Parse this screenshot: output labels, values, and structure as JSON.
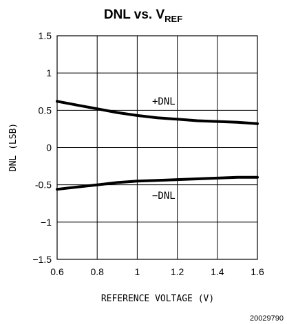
{
  "chart_data": {
    "type": "line",
    "title": "DNL vs. V",
    "title_subscript": "REF",
    "xlabel": "REFERENCE VOLTAGE (V)",
    "ylabel": "DNL (LSB)",
    "xlim": [
      0.6,
      1.6
    ],
    "ylim": [
      -1.5,
      1.5
    ],
    "x_ticks": [
      "0.6",
      "0.8",
      "1",
      "1.2",
      "1.4",
      "1.6"
    ],
    "y_ticks": [
      "1.5",
      "1",
      "0.5",
      "0",
      "-0.5",
      "−1",
      "−1.5"
    ],
    "grid": true,
    "series": [
      {
        "name": "+DNL",
        "x": [
          0.6,
          0.7,
          0.8,
          0.9,
          1.0,
          1.1,
          1.2,
          1.3,
          1.4,
          1.5,
          1.6
        ],
        "y": [
          0.62,
          0.57,
          0.52,
          0.47,
          0.43,
          0.4,
          0.38,
          0.36,
          0.35,
          0.34,
          0.32
        ]
      },
      {
        "name": "-DNL",
        "x": [
          0.6,
          0.7,
          0.8,
          0.9,
          1.0,
          1.1,
          1.2,
          1.3,
          1.4,
          1.5,
          1.6
        ],
        "y": [
          -0.56,
          -0.53,
          -0.5,
          -0.47,
          -0.45,
          -0.44,
          -0.43,
          -0.42,
          -0.41,
          -0.4,
          -0.4
        ]
      }
    ],
    "annotations": [
      "+DNL",
      "−DNL"
    ],
    "figure_code": "20029790"
  }
}
